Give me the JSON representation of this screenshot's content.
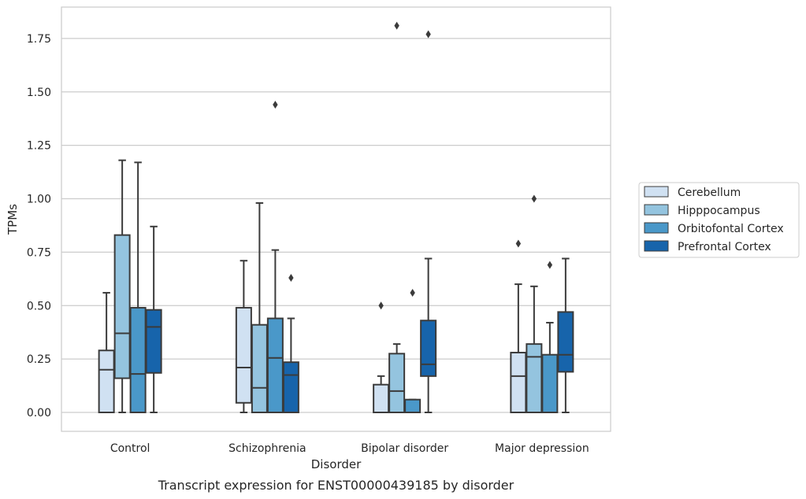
{
  "chart_data": {
    "type": "box",
    "title": "",
    "caption": "Transcript expression for ENST00000439185 by disorder",
    "xlabel": "Disorder",
    "ylabel": "TPMs",
    "ylim": [
      -0.09,
      1.9
    ],
    "yticks": [
      "0.00",
      "0.25",
      "0.50",
      "0.75",
      "1.00",
      "1.25",
      "1.50",
      "1.75"
    ],
    "grid": "horizontal",
    "legend_position": "right",
    "categories": [
      "Control",
      "Schizophrenia",
      "Bipolar disorder",
      "Major depression"
    ],
    "series": [
      {
        "name": "Cerebellum",
        "color": "#d0e1f2",
        "boxes": [
          {
            "whislo": 0.0,
            "q1": 0.0,
            "med": 0.2,
            "q3": 0.29,
            "whishi": 0.56,
            "fliers": []
          },
          {
            "whislo": 0.0,
            "q1": 0.045,
            "med": 0.21,
            "q3": 0.49,
            "whishi": 0.71,
            "fliers": []
          },
          {
            "whislo": 0.0,
            "q1": 0.0,
            "med": 0.0,
            "q3": 0.13,
            "whishi": 0.17,
            "fliers": [
              0.5
            ]
          },
          {
            "whislo": 0.0,
            "q1": 0.0,
            "med": 0.17,
            "q3": 0.28,
            "whishi": 0.6,
            "fliers": [
              0.79
            ]
          }
        ]
      },
      {
        "name": "Hipppocampus",
        "color": "#94c4df",
        "boxes": [
          {
            "whislo": 0.0,
            "q1": 0.16,
            "med": 0.37,
            "q3": 0.83,
            "whishi": 1.18,
            "fliers": []
          },
          {
            "whislo": 0.0,
            "q1": 0.0,
            "med": 0.115,
            "q3": 0.41,
            "whishi": 0.98,
            "fliers": []
          },
          {
            "whislo": 0.0,
            "q1": 0.0,
            "med": 0.1,
            "q3": 0.275,
            "whishi": 0.32,
            "fliers": [
              1.81
            ]
          },
          {
            "whislo": 0.0,
            "q1": 0.0,
            "med": 0.26,
            "q3": 0.32,
            "whishi": 0.59,
            "fliers": [
              1.0
            ]
          }
        ]
      },
      {
        "name": "Orbitofontal Cortex",
        "color": "#4a98c9",
        "boxes": [
          {
            "whislo": 0.0,
            "q1": 0.0,
            "med": 0.18,
            "q3": 0.49,
            "whishi": 1.17,
            "fliers": []
          },
          {
            "whislo": 0.0,
            "q1": 0.0,
            "med": 0.255,
            "q3": 0.44,
            "whishi": 0.76,
            "fliers": [
              1.44
            ]
          },
          {
            "whislo": 0.0,
            "q1": 0.0,
            "med": 0.0,
            "q3": 0.06,
            "whishi": 0.06,
            "fliers": [
              0.56
            ]
          },
          {
            "whislo": 0.0,
            "q1": 0.0,
            "med": 0.0,
            "q3": 0.27,
            "whishi": 0.42,
            "fliers": [
              0.69
            ]
          }
        ]
      },
      {
        "name": "Prefrontal Cortex",
        "color": "#1764ab",
        "boxes": [
          {
            "whislo": 0.0,
            "q1": 0.185,
            "med": 0.4,
            "q3": 0.48,
            "whishi": 0.87,
            "fliers": []
          },
          {
            "whislo": 0.0,
            "q1": 0.0,
            "med": 0.175,
            "q3": 0.235,
            "whishi": 0.44,
            "fliers": [
              0.63
            ]
          },
          {
            "whislo": 0.0,
            "q1": 0.17,
            "med": 0.225,
            "q3": 0.43,
            "whishi": 0.72,
            "fliers": [
              1.77
            ]
          },
          {
            "whislo": 0.0,
            "q1": 0.19,
            "med": 0.27,
            "q3": 0.47,
            "whishi": 0.72,
            "fliers": []
          }
        ]
      }
    ]
  }
}
